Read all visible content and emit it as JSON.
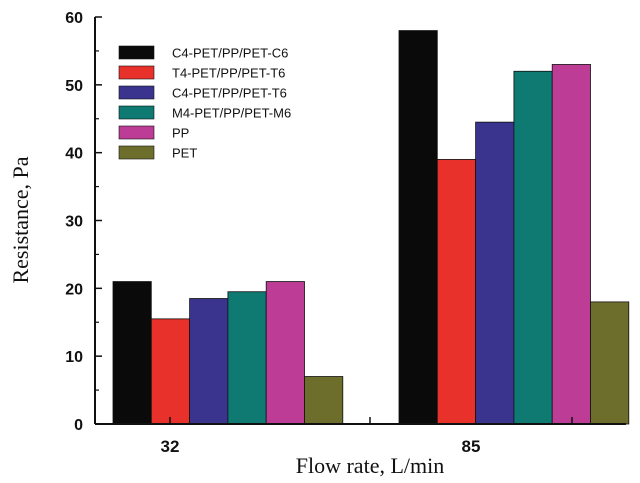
{
  "chart_data": {
    "type": "bar",
    "title": "",
    "xlabel": "Flow rate, L/min",
    "ylabel": "Resistance, Pa",
    "ylim": [
      0,
      60
    ],
    "yticks": [
      0,
      10,
      20,
      30,
      40,
      50,
      60
    ],
    "categories": [
      "32",
      "85"
    ],
    "legend_position": "top-left",
    "grid": false,
    "series": [
      {
        "name": "C4-PET/PP/PET-C6",
        "color": "#0a0a0a",
        "values": [
          21,
          58
        ]
      },
      {
        "name": "T4-PET/PP/PET-T6",
        "color": "#e8312a",
        "values": [
          15.5,
          39
        ]
      },
      {
        "name": "C4-PET/PP/PET-T6",
        "color": "#3b348f",
        "values": [
          18.5,
          44.5
        ]
      },
      {
        "name": "M4-PET/PP/PET-M6",
        "color": "#0e7a72",
        "values": [
          19.5,
          52
        ]
      },
      {
        "name": "PP",
        "color": "#bd3c96",
        "values": [
          21,
          53
        ]
      },
      {
        "name": "PET",
        "color": "#6e6e2c",
        "values": [
          7,
          18
        ]
      }
    ]
  }
}
